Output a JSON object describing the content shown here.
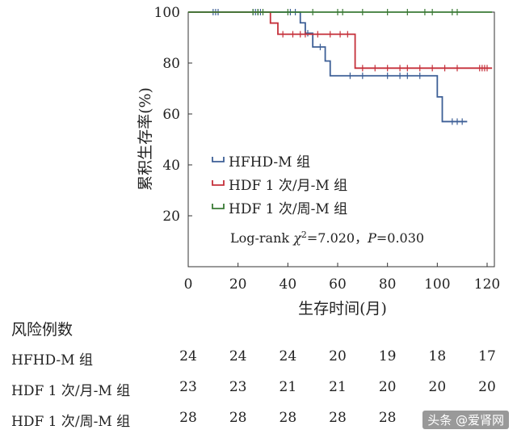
{
  "chart_data": {
    "type": "line",
    "step": true,
    "title": "",
    "xlabel": "生存时间(月)",
    "ylabel": "累积生存率(%)",
    "xlim": [
      0,
      120
    ],
    "ylim": [
      0,
      100
    ],
    "xticks": [
      "0",
      "20",
      "40",
      "60",
      "80",
      "100",
      "120"
    ],
    "yticks": [
      "20",
      "40",
      "60",
      "80",
      "100"
    ],
    "grid": false,
    "legend_position": "center-left",
    "annotation": {
      "prefix": "Log-rank ",
      "chi": "χ",
      "sup": "2",
      "mid": "=7.020，",
      "p": "P",
      "suffix": "=0.030"
    },
    "series": [
      {
        "name": "HFHD-M 组",
        "color": "#3d5f96",
        "steps": [
          [
            0,
            100
          ],
          [
            45,
            100
          ],
          [
            45,
            95.8
          ],
          [
            47,
            95.8
          ],
          [
            47,
            91.7
          ],
          [
            50,
            91.7
          ],
          [
            50,
            86.3
          ],
          [
            55,
            86.3
          ],
          [
            55,
            80.8
          ],
          [
            57,
            80.8
          ],
          [
            57,
            75.0
          ],
          [
            100,
            75.0
          ],
          [
            100,
            66.7
          ],
          [
            102,
            66.7
          ],
          [
            102,
            57.0
          ],
          [
            112,
            57.0
          ]
        ],
        "censor": [
          [
            10,
            100
          ],
          [
            11,
            100
          ],
          [
            12,
            100
          ],
          [
            26,
            100
          ],
          [
            27,
            100
          ],
          [
            28,
            100
          ],
          [
            29,
            100
          ],
          [
            41,
            100
          ],
          [
            43,
            100
          ],
          [
            48,
            91.7
          ],
          [
            53,
            86.3
          ],
          [
            65,
            75
          ],
          [
            70,
            75
          ],
          [
            80,
            75
          ],
          [
            85,
            75
          ],
          [
            88,
            75
          ],
          [
            93,
            75
          ],
          [
            106,
            57
          ],
          [
            108,
            57
          ],
          [
            110,
            57
          ]
        ]
      },
      {
        "name": "HDF 1 次/月-M 组",
        "color": "#c5303a",
        "steps": [
          [
            0,
            100
          ],
          [
            33,
            100
          ],
          [
            33,
            95.7
          ],
          [
            36,
            95.7
          ],
          [
            36,
            91.3
          ],
          [
            67,
            91.3
          ],
          [
            67,
            78.0
          ],
          [
            122,
            78.0
          ]
        ],
        "censor": [
          [
            38,
            91.3
          ],
          [
            42,
            91.3
          ],
          [
            45,
            91.3
          ],
          [
            47,
            91.3
          ],
          [
            52,
            91.3
          ],
          [
            57,
            91.3
          ],
          [
            61,
            91.3
          ],
          [
            64,
            91.3
          ],
          [
            70,
            78
          ],
          [
            75,
            78
          ],
          [
            80,
            78
          ],
          [
            85,
            78
          ],
          [
            88,
            78
          ],
          [
            93,
            78
          ],
          [
            98,
            78
          ],
          [
            103,
            78
          ],
          [
            108,
            78
          ],
          [
            117,
            78
          ],
          [
            118,
            78
          ],
          [
            119,
            78
          ],
          [
            120,
            78
          ]
        ]
      },
      {
        "name": "HDF 1 次/周-M 组",
        "color": "#3a7a35",
        "steps": [
          [
            0,
            100
          ],
          [
            122,
            100
          ]
        ],
        "censor": [
          [
            26,
            100
          ],
          [
            28,
            100
          ],
          [
            30,
            100
          ],
          [
            40,
            100
          ],
          [
            50,
            100
          ],
          [
            60,
            100
          ],
          [
            62,
            100
          ],
          [
            70,
            100
          ],
          [
            80,
            100
          ],
          [
            88,
            100
          ],
          [
            95,
            100
          ],
          [
            98,
            100
          ],
          [
            106,
            100
          ],
          [
            108,
            100
          ]
        ]
      }
    ]
  },
  "risk_table": {
    "title": "风险例数",
    "times": [
      0,
      20,
      40,
      60,
      80,
      100,
      120
    ],
    "rows": [
      {
        "label": "HFHD-M 组",
        "counts": [
          "24",
          "24",
          "24",
          "20",
          "19",
          "18",
          "17"
        ]
      },
      {
        "label": "HDF 1 次/月-M 组",
        "counts": [
          "23",
          "23",
          "21",
          "21",
          "20",
          "20",
          "20"
        ]
      },
      {
        "label": "HDF 1 次/周-M 组",
        "counts": [
          "28",
          "28",
          "28",
          "28",
          "28",
          "",
          ""
        ]
      }
    ]
  },
  "watermark": "头条 @爱肾网"
}
